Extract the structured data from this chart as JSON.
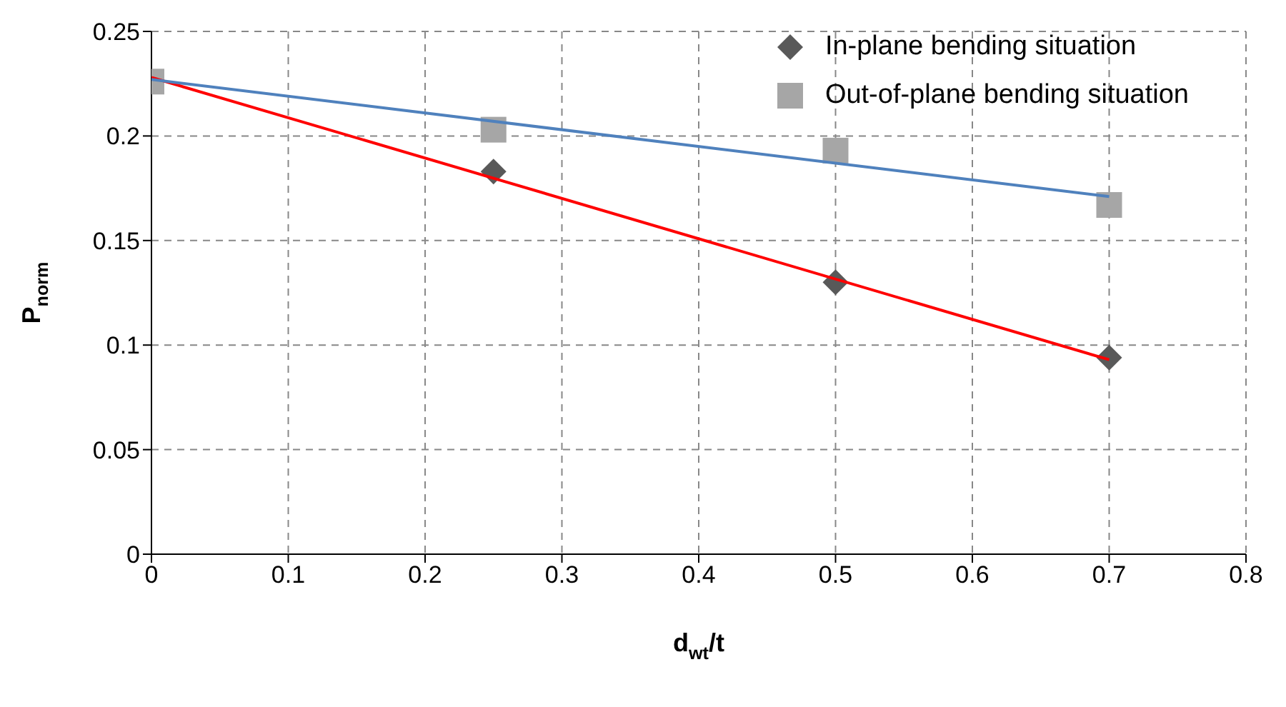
{
  "chart_data": {
    "type": "scatter",
    "xlabel": "d$_{wt}$/t",
    "ylabel": "P$_{norm}$",
    "xlim": [
      0,
      0.8
    ],
    "xticks": [
      0,
      0.1,
      0.2,
      0.3,
      0.4,
      0.5,
      0.6,
      0.7,
      0.8
    ],
    "ylim": [
      0,
      0.25
    ],
    "yticks": [
      0,
      0.05,
      0.1,
      0.15,
      0.2,
      0.25
    ],
    "grid": true,
    "legend": "top right",
    "series": [
      {
        "name": "In-plane bending situation",
        "marker": "diamond",
        "color": "#595959",
        "x": [
          0.25,
          0.5,
          0.7
        ],
        "values": [
          0.183,
          0.13,
          0.094
        ]
      },
      {
        "name": "Out-of-plane bending situation",
        "marker": "square",
        "color": "#a6a6a6",
        "x": [
          0,
          0.25,
          0.5,
          0.7
        ],
        "values": [
          0.226,
          0.203,
          0.193,
          0.167
        ]
      },
      {
        "type": "line",
        "color": "#ff0000",
        "x": [
          0,
          0.7
        ],
        "values": [
          0.228,
          0.093
        ]
      },
      {
        "type": "line",
        "color": "#4f81bd",
        "x": [
          0,
          0.7
        ],
        "values": [
          0.227,
          0.171
        ]
      }
    ]
  }
}
